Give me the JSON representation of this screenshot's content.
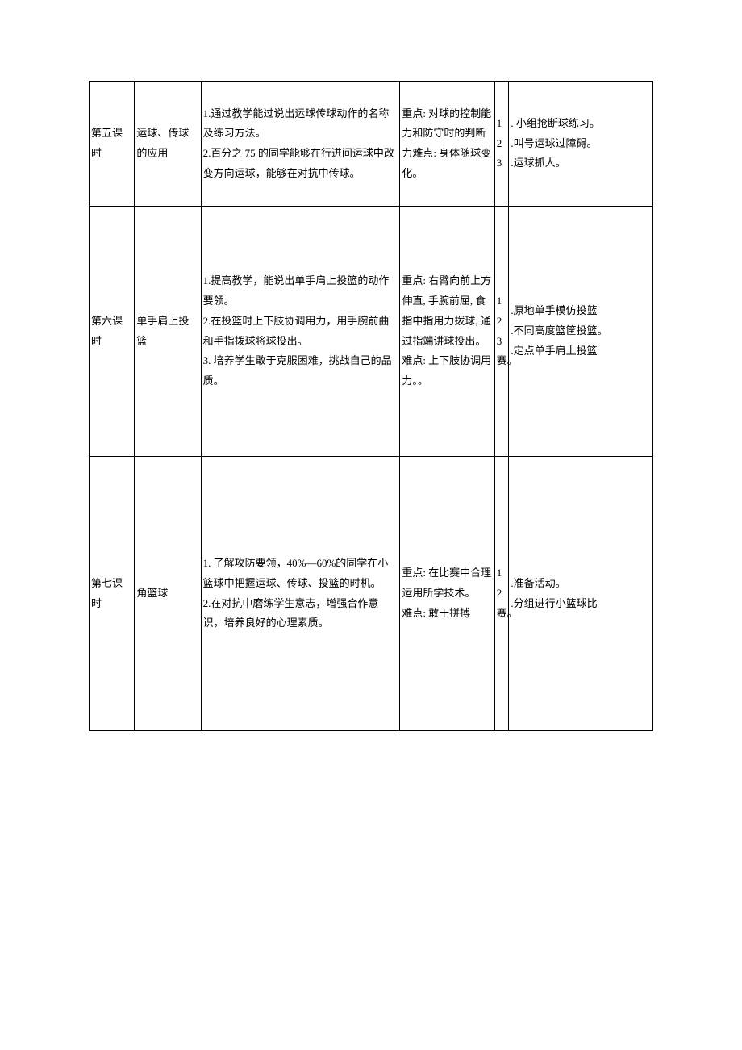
{
  "table": {
    "columns": [
      "col-lesson",
      "col-topic",
      "col-objective",
      "col-keypoint",
      "col-number",
      "col-method"
    ],
    "rows": [
      {
        "class": "row-5",
        "lesson": "第五课时",
        "topic": "运球、传球的应用",
        "objective": "1.通过教学能过说出运球传球动作的名称及练习方法。\n2.百分之 75 的同学能够在行进间运球中改变方向运球，能够在对抗中传球。",
        "keypoint": "重点: 对球的控制能力和防守时的判断力难点: 身体随球变化。",
        "number": "1\n2\n3",
        "method": ". 小组抢断球练习。\n.叫号运球过障碍。\n.运球抓人。"
      },
      {
        "class": "row-6",
        "lesson": "第六课时",
        "topic": "单手肩上投篮",
        "objective": "1.提高教学，能说出单手肩上投篮的动作要领。\n2.在投篮时上下肢协调用力，用手腕前曲和手指拨球将球投出。\n3. 培养学生敢于克服困难，挑战自己的品质。",
        "keypoint": "重点: 右臂向前上方伸直, 手腕前屈, 食指中指用力拨球, 通过指端讲球投出。难点: 上下肢协调用力。。",
        "number": "1\n2\n3赛。",
        "method": ".原地单手模仿投篮\n.不同高度篮筐投篮。\n.定点单手肩上投篮"
      },
      {
        "class": "row-7",
        "lesson": "第七课时",
        "topic": "角篮球",
        "objective": "1. 了解攻防要领，40%—60%的同学在小篮球中把握运球、传球、投篮的时机。\n2.在对抗中磨练学生意志，增强合作意识，培养良好的心理素质。",
        "keypoint": "重点: 在比赛中合理运用所学技术。\n难点: 敢于拼搏",
        "number": "1\n2赛。",
        "method": ".准备活动。\n.分组进行小篮球比"
      }
    ]
  }
}
